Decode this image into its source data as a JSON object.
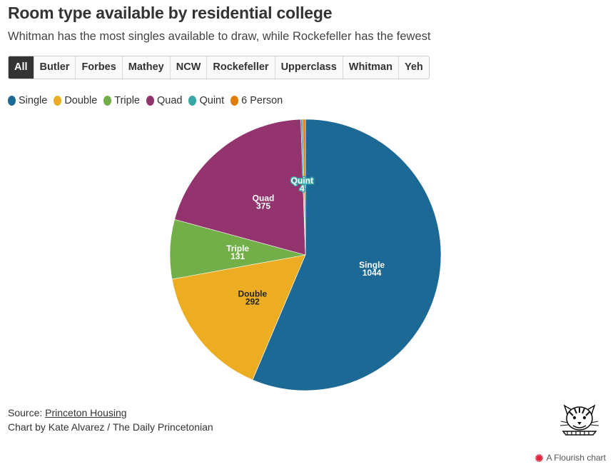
{
  "header": {
    "title": "Room type available by residential college",
    "subtitle": "Whitman has the most singles available to draw, while Rockefeller has the fewest"
  },
  "tabs": [
    {
      "label": "All",
      "active": true
    },
    {
      "label": "Butler",
      "active": false
    },
    {
      "label": "Forbes",
      "active": false
    },
    {
      "label": "Mathey",
      "active": false
    },
    {
      "label": "NCW",
      "active": false
    },
    {
      "label": "Rockefeller",
      "active": false
    },
    {
      "label": "Upperclass",
      "active": false
    },
    {
      "label": "Whitman",
      "active": false
    },
    {
      "label": "Yeh",
      "active": false
    }
  ],
  "chart_data": {
    "type": "pie",
    "title": "Room type available by residential college",
    "filter": "All",
    "slices": [
      {
        "label": "Single",
        "value": 1044,
        "color": "#1d6996",
        "text_color": "#ffffff"
      },
      {
        "label": "Double",
        "value": 292,
        "color": "#edad22",
        "text_color": "#222222"
      },
      {
        "label": "Triple",
        "value": 131,
        "color": "#73af48",
        "text_color": "#ffffff"
      },
      {
        "label": "Quad",
        "value": 375,
        "color": "#94346e",
        "text_color": "#ffffff"
      },
      {
        "label": "Quint",
        "value": 4,
        "color": "#38a6a5",
        "text_color": "#ffffff"
      },
      {
        "label": "6 Person",
        "value": 6,
        "color": "#e17c05",
        "text_color": "#ffffff"
      }
    ]
  },
  "footer": {
    "source_prefix": "Source: ",
    "source_link": "Princeton Housing",
    "credit": "Chart by Kate Alvarez / The Daily Princetonian"
  },
  "branding": {
    "flourish_label": "A Flourish chart",
    "flourish_color": "#e0263c"
  }
}
